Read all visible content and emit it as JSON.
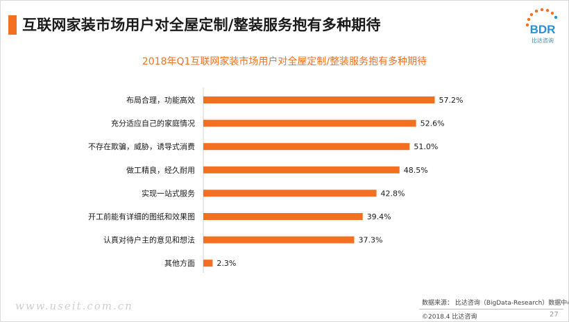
{
  "header": {
    "title": "互联网家装市场用户对全屋定制/整装服务抱有多种期待"
  },
  "logo": {
    "text": "BDR",
    "subtext": "比达咨询",
    "colors": {
      "primary": "#f37021",
      "secondary": "#2b8fd6"
    }
  },
  "colors": {
    "accent": "#f37021",
    "bar": "#f37021",
    "text": "#1a1a1a"
  },
  "chart_data": {
    "type": "bar",
    "orientation": "horizontal",
    "title": "2018年Q1互联网家装市场用户对全屋定制/整装服务抱有多种期待",
    "categories": [
      "布局合理，功能高效",
      "充分适应自己的家庭情况",
      "不存在欺骗，威胁，诱导式消费",
      "做工精良，经久耐用",
      "实现一站式服务",
      "开工前能有详细的图纸和效果图",
      "认真对待户主的意见和想法",
      "其他方面"
    ],
    "values": [
      57.2,
      52.6,
      51.0,
      48.5,
      42.8,
      39.4,
      37.3,
      2.3
    ],
    "value_labels": [
      "57.2%",
      "52.6%",
      "51.0%",
      "48.5%",
      "42.8%",
      "39.4%",
      "37.3%",
      "2.3%"
    ],
    "xlim": [
      0,
      100
    ],
    "grid": false,
    "legend": "none"
  },
  "footer": {
    "source": "数据来源： 比达咨询（BigData-Research）数据中心",
    "copyright": "©2018.4   比达咨询",
    "page_number": "27"
  },
  "watermark": "www.useit.com.cn"
}
